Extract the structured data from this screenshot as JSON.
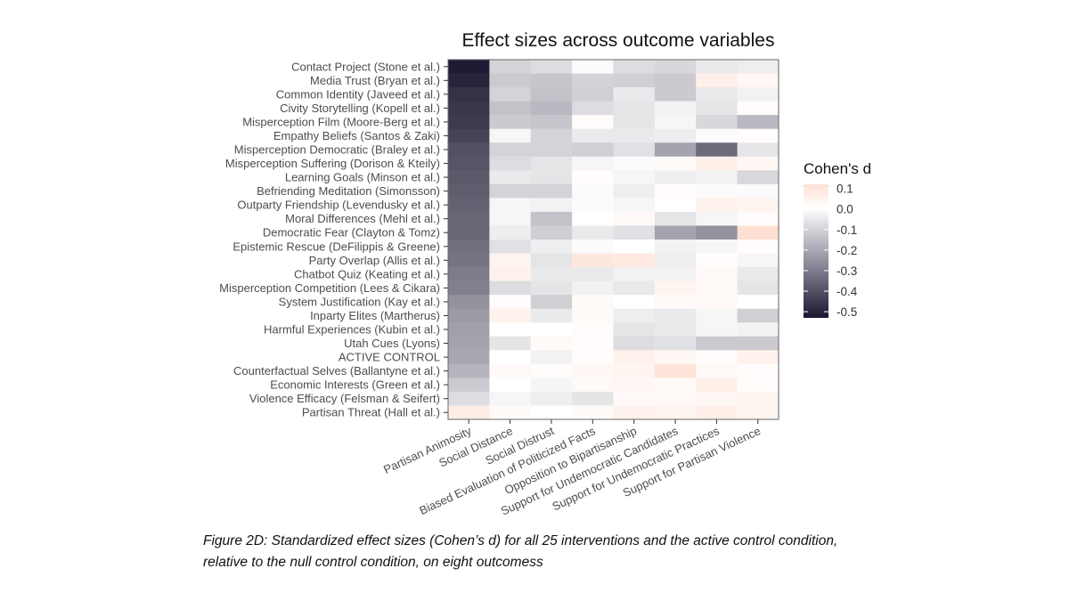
{
  "chart_data": {
    "type": "heatmap",
    "title": "Effect sizes across outcome variables",
    "legend_title": "Cohen's d",
    "legend_ticks": [
      "0.1",
      "0.0",
      "-0.1",
      "-0.2",
      "-0.3",
      "-0.4",
      "-0.5"
    ],
    "legend_tick_values": [
      0.1,
      0.0,
      -0.1,
      -0.2,
      -0.3,
      -0.4,
      -0.5
    ],
    "legend_placement": "right",
    "color_range": [
      -0.53,
      0.12
    ],
    "colors": {
      "low": "#1c1730",
      "mid": "#ffffff",
      "high": "#fde0d2",
      "panel_border": "#666666"
    },
    "rows": [
      "Contact Project (Stone et al.)",
      "Media Trust (Bryan et al.)",
      "Common Identity (Javeed et al.)",
      "Civity Storytelling (Kopell et al.)",
      "Misperception Film (Moore-Berg et al.)",
      "Empathy Beliefs (Santos & Zaki)",
      "Misperception Democratic (Braley et al.)",
      "Misperception Suffering (Dorison & Kteily)",
      "Learning Goals (Minson et al.)",
      "Befriending Meditation (Simonsson)",
      "Outparty Friendship (Levendusky et al.)",
      "Moral Differences (Mehl et al.)",
      "Democratic Fear (Clayton & Tomz)",
      "Epistemic Rescue (DeFilippis & Greene)",
      "Party Overlap (Allis et al.)",
      "Chatbot Quiz (Keating et al.)",
      "Misperception Competition (Lees & Cikara)",
      "System Justification (Kay et al.)",
      "Inparty Elites (Martherus)",
      "Harmful Experiences (Kubin et al.)",
      "Utah Cues (Lyons)",
      "ACTIVE CONTROL",
      "Counterfactual Selves (Ballantyne et al.)",
      "Economic Interests (Green et al.)",
      "Violence Efficacy (Felsman & Seifert)",
      "Partisan Threat (Hall et al.)"
    ],
    "columns": [
      "Partisan Animosity",
      "Social Distance",
      "Social Distrust",
      "Biased Evaluation of Politicized Facts",
      "Opposition to Bipartisanship",
      "Support for Undemocratic Candidates",
      "Support for Undemocratic Practices",
      "Support for Partisan Violence"
    ],
    "values": [
      [
        -0.52,
        -0.1,
        -0.08,
        -0.01,
        -0.08,
        -0.09,
        -0.05,
        -0.04
      ],
      [
        -0.5,
        -0.12,
        -0.13,
        -0.1,
        -0.11,
        -0.12,
        0.06,
        0.03
      ],
      [
        -0.47,
        -0.1,
        -0.14,
        -0.11,
        -0.05,
        -0.12,
        -0.05,
        -0.03
      ],
      [
        -0.46,
        -0.14,
        -0.16,
        -0.08,
        -0.06,
        -0.03,
        -0.06,
        0.01
      ],
      [
        -0.45,
        -0.12,
        -0.13,
        0.01,
        -0.06,
        -0.02,
        -0.09,
        -0.16
      ],
      [
        -0.43,
        -0.02,
        -0.1,
        -0.05,
        -0.05,
        -0.04,
        -0.01,
        0.01
      ],
      [
        -0.4,
        -0.1,
        -0.1,
        -0.11,
        -0.07,
        -0.21,
        -0.34,
        -0.06
      ],
      [
        -0.39,
        -0.08,
        -0.06,
        -0.02,
        -0.01,
        0.02,
        0.06,
        0.03
      ],
      [
        -0.38,
        -0.05,
        -0.06,
        0.01,
        -0.02,
        -0.04,
        -0.03,
        -0.09
      ],
      [
        -0.37,
        -0.1,
        -0.1,
        -0.01,
        -0.04,
        0.01,
        -0.01,
        -0.01
      ],
      [
        -0.36,
        -0.02,
        -0.03,
        -0.01,
        -0.02,
        0.0,
        0.05,
        0.04
      ],
      [
        -0.35,
        -0.02,
        -0.14,
        0.0,
        0.02,
        -0.06,
        -0.02,
        0.01
      ],
      [
        -0.35,
        -0.04,
        -0.11,
        -0.05,
        -0.07,
        -0.21,
        -0.25,
        0.12
      ],
      [
        -0.33,
        -0.07,
        -0.04,
        -0.01,
        0.0,
        -0.03,
        -0.02,
        0.01
      ],
      [
        -0.32,
        0.04,
        -0.06,
        0.09,
        0.08,
        -0.04,
        0.01,
        -0.02
      ],
      [
        -0.3,
        0.05,
        -0.05,
        -0.05,
        -0.03,
        -0.03,
        0.02,
        -0.05
      ],
      [
        -0.29,
        -0.08,
        -0.06,
        -0.03,
        -0.05,
        0.04,
        0.02,
        -0.06
      ],
      [
        -0.25,
        0.01,
        -0.11,
        0.02,
        0.0,
        0.02,
        0.02,
        0.0
      ],
      [
        -0.23,
        0.05,
        -0.05,
        0.02,
        -0.04,
        -0.05,
        -0.02,
        -0.11
      ],
      [
        -0.22,
        0.0,
        0.0,
        0.01,
        -0.06,
        -0.05,
        -0.02,
        -0.03
      ],
      [
        -0.21,
        -0.06,
        0.02,
        0.01,
        -0.08,
        -0.07,
        -0.12,
        -0.12
      ],
      [
        -0.2,
        0.0,
        -0.03,
        0.01,
        0.05,
        0.03,
        0.01,
        0.05
      ],
      [
        -0.17,
        0.02,
        0.01,
        0.03,
        0.04,
        0.1,
        0.02,
        0.01
      ],
      [
        -0.12,
        0.0,
        -0.02,
        0.02,
        0.03,
        0.02,
        0.06,
        0.01
      ],
      [
        -0.08,
        -0.02,
        -0.04,
        -0.06,
        0.02,
        0.02,
        0.03,
        0.04
      ],
      [
        0.07,
        0.02,
        0.0,
        0.02,
        0.05,
        0.04,
        0.06,
        0.04
      ]
    ]
  },
  "caption": "Figure 2D: Standardized effect sizes (Cohen’s d) for all 25 interventions and the active control condition, relative to the null control condition, on eight outcomess"
}
